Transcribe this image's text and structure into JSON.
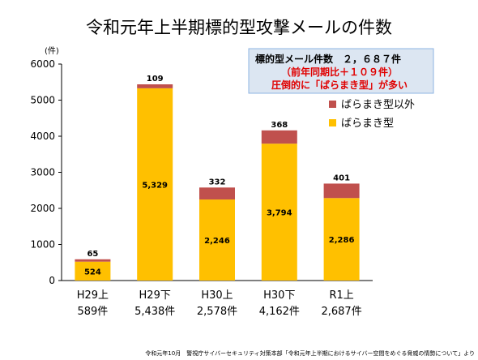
{
  "chart_data": {
    "type": "bar",
    "stacked": true,
    "title": "令和元年上半期標的型攻撃メールの件数",
    "y_unit": "(件)",
    "ylim": [
      0,
      6000
    ],
    "yticks": [
      0,
      1000,
      2000,
      3000,
      4000,
      5000,
      6000
    ],
    "grid": false,
    "categories": [
      "H29上",
      "H29下",
      "H30上",
      "H30下",
      "R1上"
    ],
    "category_totals": [
      "589件",
      "5,438件",
      "2,578件",
      "4,162件",
      "2,687件"
    ],
    "series": [
      {
        "name": "ばらまき型",
        "values": [
          524,
          5329,
          2246,
          3794,
          2286
        ],
        "labels": [
          "524",
          "5,329",
          "2,246",
          "3,794",
          "2,286"
        ],
        "color": "#FFC000"
      },
      {
        "name": "ばらまき型以外",
        "values": [
          65,
          109,
          332,
          368,
          401
        ],
        "labels": [
          "65",
          "109",
          "332",
          "368",
          "401"
        ],
        "color": "#C0504D"
      }
    ],
    "legend_position": "right",
    "annotation": {
      "line1": "標的型メール件数　２，６８７件",
      "line2": "（前年同期比＋１０９件）",
      "line3": "圧倒的に「ばらまき型」が多い"
    }
  },
  "source_note": "令和元年10月　警視庁サイバーセキュリティ対策本部「令和元年上半期におけるサイバー空間をめぐる脅威の情勢について」より"
}
